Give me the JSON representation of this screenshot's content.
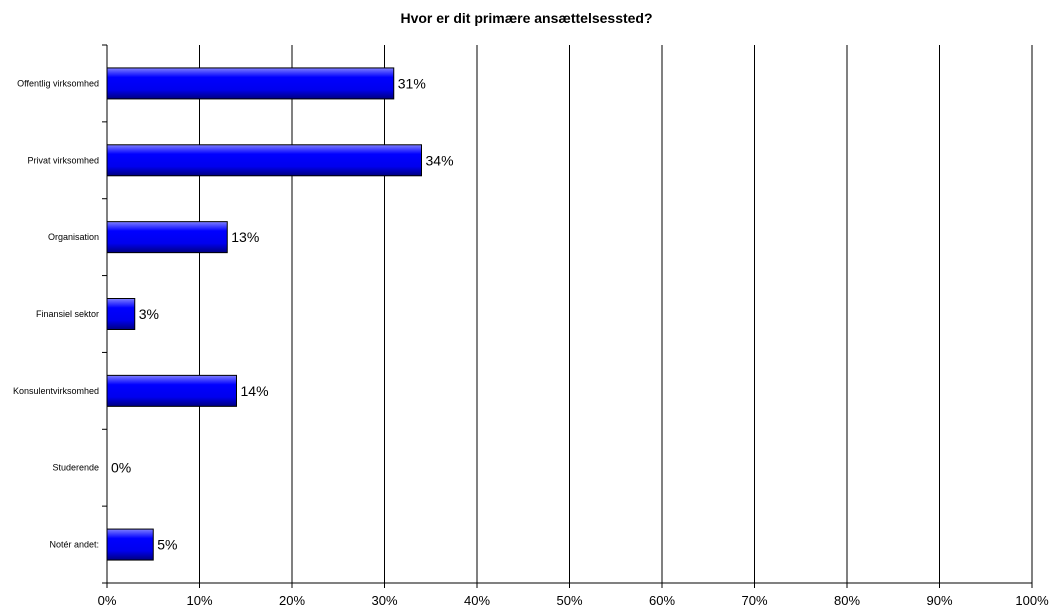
{
  "chart_data": {
    "type": "bar",
    "orientation": "horizontal",
    "title": "Hvor er dit primære ansættelsessted?",
    "xlabel": "",
    "ylabel": "",
    "categories": [
      "Offentlig virksomhed",
      "Privat virksomhed",
      "Organisation",
      "Finansiel sektor",
      "Konsulentvirksomhed",
      "Studerende",
      "Notér andet:"
    ],
    "values": [
      31,
      34,
      13,
      3,
      14,
      0,
      5
    ],
    "value_labels": [
      "31%",
      "34%",
      "13%",
      "3%",
      "14%",
      "0%",
      "5%"
    ],
    "xlim": [
      0,
      100
    ],
    "x_ticks": [
      0,
      10,
      20,
      30,
      40,
      50,
      60,
      70,
      80,
      90,
      100
    ],
    "x_tick_labels": [
      "0%",
      "10%",
      "20%",
      "30%",
      "40%",
      "50%",
      "60%",
      "70%",
      "80%",
      "90%",
      "100%"
    ],
    "grid": true,
    "legend": "none",
    "colors": {
      "bar_fill": "#0000ff",
      "bar_shade": "#000080",
      "bar_edge": "#000000",
      "grid": "#000000"
    }
  }
}
